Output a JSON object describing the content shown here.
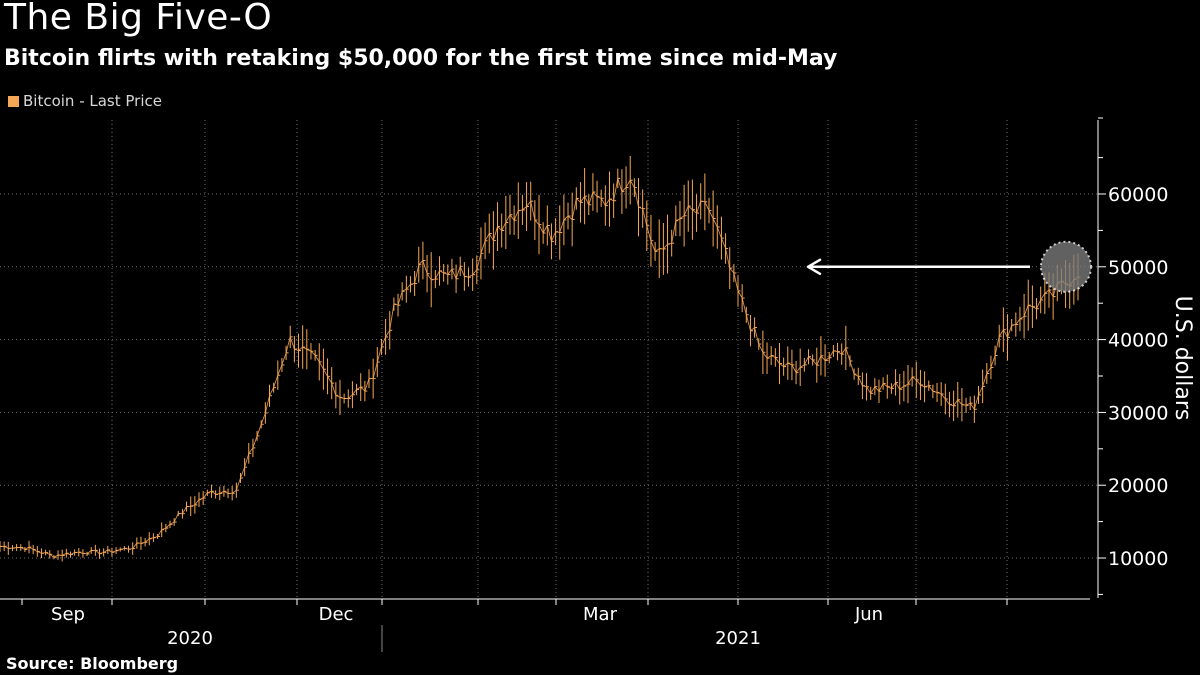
{
  "header": {
    "title": "The Big Five-O",
    "subtitle": "Bitcoin flirts with retaking $50,000 for the first time since mid-May"
  },
  "legend": {
    "label": "Bitcoin - Last Price"
  },
  "source": "Source: Bloomberg",
  "colors": {
    "series": "#f7a857",
    "background": "#000000",
    "grid": "#6b6b6b",
    "text": "#ffffff",
    "arrow": "#ffffff",
    "highlight": "#7a7a7a"
  },
  "annotation": {
    "arrow_from_value": 50000,
    "arrow_to_value": 50000,
    "highlight_value": 50000,
    "highlight_label": ""
  },
  "chart_data": {
    "type": "line",
    "title": "The Big Five-O",
    "subtitle": "Bitcoin flirts with retaking $50,000 for the first time since mid-May",
    "ylabel": "U.S. dollars",
    "xlabel": "",
    "ylim": [
      5000,
      70000
    ],
    "yticks": [
      10000,
      20000,
      30000,
      40000,
      50000,
      60000
    ],
    "ytick_labels": [
      "10000",
      "20000",
      "30000",
      "40000",
      "50000",
      "60000"
    ],
    "month_ticks": [
      "Sep",
      "Dec",
      "Mar",
      "Jun"
    ],
    "year_labels": [
      "2020",
      "2021"
    ],
    "grid": true,
    "legend_position": "top-left",
    "series": [
      {
        "name": "Bitcoin - Last Price",
        "x": [
          "2020-08",
          "2020-08-15",
          "2020-09",
          "2020-09-15",
          "2020-10",
          "2020-10-15",
          "2020-11",
          "2020-11-15",
          "2020-12",
          "2020-12-15",
          "2021-01",
          "2021-01-08",
          "2021-01-15",
          "2021-01-22",
          "2021-02",
          "2021-02-08",
          "2021-02-15",
          "2021-02-22",
          "2021-03",
          "2021-03-08",
          "2021-03-15",
          "2021-03-22",
          "2021-04",
          "2021-04-08",
          "2021-04-15",
          "2021-04-22",
          "2021-05",
          "2021-05-08",
          "2021-05-15",
          "2021-05-22",
          "2021-06",
          "2021-06-08",
          "2021-06-15",
          "2021-06-22",
          "2021-07",
          "2021-07-08",
          "2021-07-15",
          "2021-07-22",
          "2021-08",
          "2021-08-08",
          "2021-08-15",
          "2021-08-22"
        ],
        "values": [
          11600,
          11400,
          10300,
          10800,
          10800,
          11400,
          13200,
          16500,
          19000,
          19400,
          29000,
          40000,
          37000,
          32000,
          33500,
          44000,
          50000,
          48500,
          50000,
          56000,
          59000,
          54500,
          59000,
          59000,
          63000,
          51000,
          57000,
          58000,
          47000,
          38000,
          36000,
          37000,
          39000,
          33000,
          33500,
          34500,
          32000,
          30500,
          40000,
          44000,
          46000,
          49500
        ]
      }
    ]
  }
}
